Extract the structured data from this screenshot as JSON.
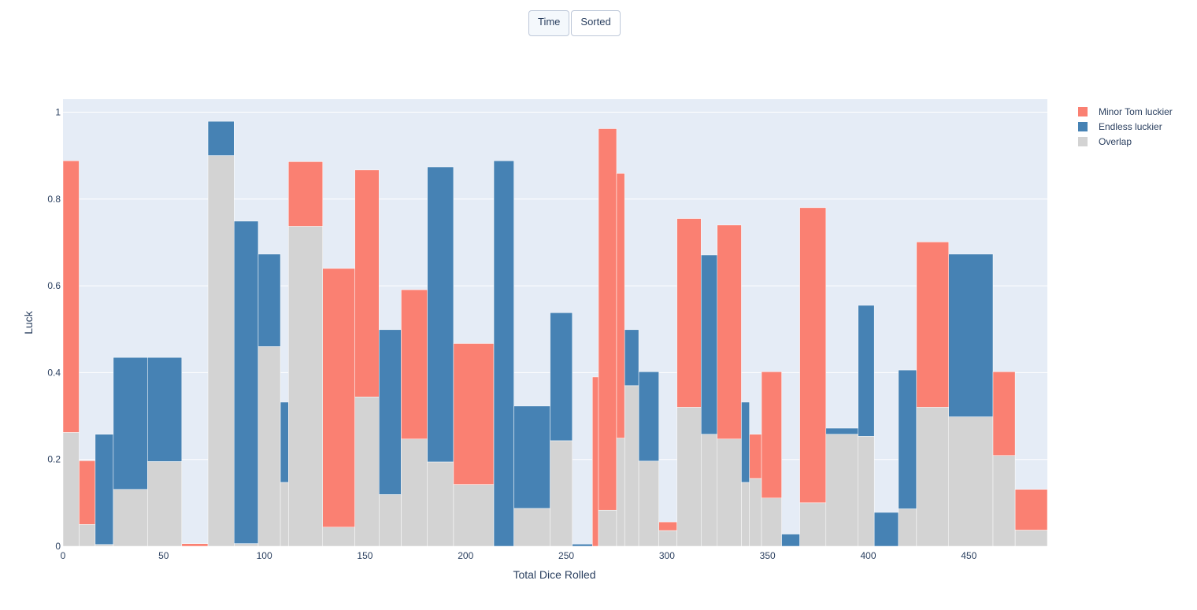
{
  "buttons": [
    {
      "label": "Time",
      "active": true
    },
    {
      "label": "Sorted",
      "active": false
    }
  ],
  "colors": {
    "plot_bg": "#e5ecf6",
    "minor": "#fa8072",
    "endless": "#4682b4",
    "overlap": "#d3d3d3",
    "grid": "#ffffff"
  },
  "chart_data": {
    "type": "bar",
    "xlabel": "Total Dice Rolled",
    "ylabel": "Luck",
    "xlim": [
      0,
      489
    ],
    "ylim": [
      0,
      1.03
    ],
    "xticks": [
      0,
      50,
      100,
      150,
      200,
      250,
      300,
      350,
      400,
      450
    ],
    "yticks": [
      0,
      0.2,
      0.4,
      0.6,
      0.8,
      1
    ],
    "ytick_labels": [
      "0",
      "0.2",
      "0.4",
      "0.6",
      "0.8",
      "1"
    ],
    "grid": true,
    "legend_position": "top-right",
    "series_names": {
      "minor": "Minor Tom luckier",
      "endless": "Endless luckier",
      "overlap": "Overlap"
    },
    "bars": [
      {
        "x0": 0,
        "x1": 8,
        "overlap": 0.262,
        "top": 0.888,
        "winner": "minor"
      },
      {
        "x0": 8,
        "x1": 16,
        "overlap": 0.05,
        "top": 0.197,
        "winner": "minor"
      },
      {
        "x0": 16,
        "x1": 25,
        "overlap": 0.004,
        "top": 0.258,
        "winner": "endless"
      },
      {
        "x0": 25,
        "x1": 42,
        "overlap": 0.131,
        "top": 0.435,
        "winner": "endless"
      },
      {
        "x0": 42,
        "x1": 59,
        "overlap": 0.195,
        "top": 0.435,
        "winner": "endless"
      },
      {
        "x0": 59,
        "x1": 72,
        "overlap": 0.0,
        "top": 0.006,
        "winner": "minor"
      },
      {
        "x0": 72,
        "x1": 85,
        "overlap": 0.9,
        "top": 0.979,
        "winner": "endless"
      },
      {
        "x0": 85,
        "x1": 97,
        "overlap": 0.006,
        "top": 0.749,
        "winner": "endless"
      },
      {
        "x0": 97,
        "x1": 108,
        "overlap": 0.46,
        "top": 0.673,
        "winner": "endless"
      },
      {
        "x0": 108,
        "x1": 112,
        "overlap": 0.147,
        "top": 0.332,
        "winner": "endless"
      },
      {
        "x0": 112,
        "x1": 129,
        "overlap": 0.737,
        "top": 0.886,
        "winner": "minor"
      },
      {
        "x0": 129,
        "x1": 145,
        "overlap": 0.044,
        "top": 0.64,
        "winner": "minor"
      },
      {
        "x0": 145,
        "x1": 157,
        "overlap": 0.344,
        "top": 0.867,
        "winner": "minor"
      },
      {
        "x0": 157,
        "x1": 168,
        "overlap": 0.119,
        "top": 0.499,
        "winner": "endless"
      },
      {
        "x0": 168,
        "x1": 181,
        "overlap": 0.247,
        "top": 0.591,
        "winner": "minor"
      },
      {
        "x0": 181,
        "x1": 194,
        "overlap": 0.194,
        "top": 0.874,
        "winner": "endless"
      },
      {
        "x0": 194,
        "x1": 214,
        "overlap": 0.142,
        "top": 0.467,
        "winner": "minor"
      },
      {
        "x0": 214,
        "x1": 224,
        "overlap": 0.0,
        "top": 0.888,
        "winner": "endless"
      },
      {
        "x0": 224,
        "x1": 242,
        "overlap": 0.087,
        "top": 0.323,
        "winner": "endless"
      },
      {
        "x0": 242,
        "x1": 253,
        "overlap": 0.243,
        "top": 0.538,
        "winner": "endless"
      },
      {
        "x0": 253,
        "x1": 263,
        "overlap": 0.0,
        "top": 0.005,
        "winner": "endless"
      },
      {
        "x0": 263,
        "x1": 266,
        "overlap": 0.0,
        "top": 0.39,
        "winner": "minor"
      },
      {
        "x0": 266,
        "x1": 275,
        "overlap": 0.083,
        "top": 0.962,
        "winner": "minor"
      },
      {
        "x0": 275,
        "x1": 279,
        "overlap": 0.249,
        "top": 0.859,
        "winner": "minor"
      },
      {
        "x0": 279,
        "x1": 286,
        "overlap": 0.37,
        "top": 0.499,
        "winner": "endless"
      },
      {
        "x0": 286,
        "x1": 296,
        "overlap": 0.196,
        "top": 0.402,
        "winner": "endless"
      },
      {
        "x0": 296,
        "x1": 305,
        "overlap": 0.036,
        "top": 0.056,
        "winner": "minor"
      },
      {
        "x0": 305,
        "x1": 317,
        "overlap": 0.32,
        "top": 0.755,
        "winner": "minor"
      },
      {
        "x0": 317,
        "x1": 325,
        "overlap": 0.258,
        "top": 0.671,
        "winner": "endless"
      },
      {
        "x0": 325,
        "x1": 337,
        "overlap": 0.247,
        "top": 0.74,
        "winner": "minor"
      },
      {
        "x0": 337,
        "x1": 341,
        "overlap": 0.147,
        "top": 0.332,
        "winner": "endless"
      },
      {
        "x0": 341,
        "x1": 347,
        "overlap": 0.156,
        "top": 0.258,
        "winner": "minor"
      },
      {
        "x0": 347,
        "x1": 357,
        "overlap": 0.111,
        "top": 0.402,
        "winner": "minor"
      },
      {
        "x0": 357,
        "x1": 366,
        "overlap": 0.0,
        "top": 0.028,
        "winner": "endless"
      },
      {
        "x0": 366,
        "x1": 379,
        "overlap": 0.1,
        "top": 0.78,
        "winner": "minor"
      },
      {
        "x0": 379,
        "x1": 395,
        "overlap": 0.258,
        "top": 0.272,
        "winner": "endless"
      },
      {
        "x0": 395,
        "x1": 403,
        "overlap": 0.253,
        "top": 0.555,
        "winner": "endless"
      },
      {
        "x0": 403,
        "x1": 415,
        "overlap": 0.0,
        "top": 0.078,
        "winner": "endless"
      },
      {
        "x0": 415,
        "x1": 424,
        "overlap": 0.086,
        "top": 0.406,
        "winner": "endless"
      },
      {
        "x0": 424,
        "x1": 440,
        "overlap": 0.32,
        "top": 0.701,
        "winner": "minor"
      },
      {
        "x0": 440,
        "x1": 462,
        "overlap": 0.298,
        "top": 0.673,
        "winner": "endless"
      },
      {
        "x0": 462,
        "x1": 473,
        "overlap": 0.209,
        "top": 0.402,
        "winner": "minor"
      },
      {
        "x0": 473,
        "x1": 489,
        "overlap": 0.037,
        "top": 0.131,
        "winner": "minor"
      }
    ]
  }
}
